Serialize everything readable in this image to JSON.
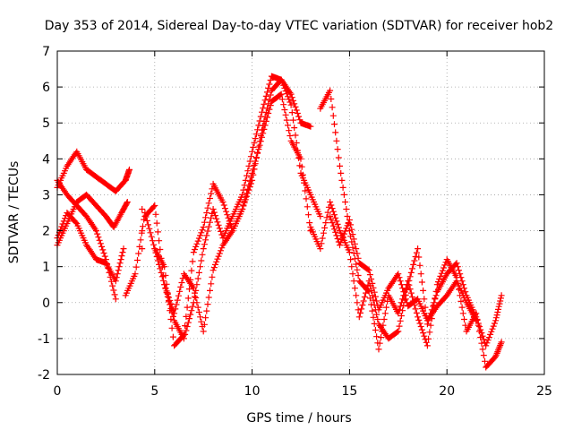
{
  "chart_data": {
    "type": "scatter",
    "title": "Day 353 of 2014, Sidereal Day-to-day VTEC variation (SDTVAR) for receiver hob2",
    "xlabel": "GPS time / hours",
    "ylabel": "SDTVAR / TECUs",
    "xlim": [
      0,
      25
    ],
    "ylim": [
      -2,
      7
    ],
    "xticks": [
      0,
      5,
      10,
      15,
      20,
      25
    ],
    "yticks": [
      -2,
      -1,
      0,
      1,
      2,
      3,
      4,
      5,
      6,
      7
    ],
    "grid": true,
    "legend": "none",
    "marker": "+",
    "series": [
      {
        "name": "trace-1",
        "color": "#ff0000",
        "x": [
          0.0,
          0.5,
          1.0,
          1.5,
          2.0,
          2.5,
          3.0,
          3.5,
          3.7
        ],
        "y": [
          3.2,
          3.8,
          4.2,
          3.7,
          3.5,
          3.3,
          3.1,
          3.4,
          3.7
        ]
      },
      {
        "name": "trace-2",
        "color": "#ff0000",
        "x": [
          0.0,
          0.5,
          1.0,
          1.5,
          2.0,
          2.5,
          2.9,
          3.3,
          3.6
        ],
        "y": [
          1.6,
          2.2,
          2.8,
          3.0,
          2.7,
          2.4,
          2.1,
          2.5,
          2.8
        ]
      },
      {
        "name": "trace-3",
        "color": "#ff0000",
        "x": [
          0.0,
          0.5,
          1.0,
          1.5,
          2.0,
          2.5,
          3.0,
          3.4
        ],
        "y": [
          1.8,
          2.5,
          2.2,
          1.6,
          1.2,
          1.1,
          0.6,
          1.5
        ]
      },
      {
        "name": "trace-4",
        "color": "#ff0000",
        "x": [
          0.0,
          0.5,
          1.0,
          1.5,
          2.0,
          2.5,
          3.0
        ],
        "y": [
          3.4,
          3.0,
          2.7,
          2.4,
          2.0,
          1.2,
          0.1
        ]
      },
      {
        "name": "trace-5",
        "color": "#ff0000",
        "x": [
          3.5,
          4.0,
          4.5,
          5.0,
          5.5,
          6.0,
          6.5,
          7.0,
          7.5,
          8.0,
          8.5,
          9.0,
          9.5,
          10.0,
          10.5,
          11.0,
          11.5,
          12.0,
          12.5,
          13.0
        ],
        "y": [
          0.2,
          0.8,
          2.5,
          1.5,
          0.5,
          -0.5,
          -1.0,
          0.0,
          1.5,
          2.6,
          1.8,
          2.4,
          3.0,
          4.2,
          5.3,
          6.3,
          6.2,
          5.8,
          5.0,
          4.9
        ]
      },
      {
        "name": "trace-6",
        "color": "#ff0000",
        "x": [
          4.5,
          5.0,
          5.5,
          6.0,
          6.5,
          7.0,
          7.5,
          8.0,
          8.5,
          9.0,
          9.5,
          10.0,
          10.5,
          11.0,
          11.5,
          12.0,
          12.5,
          13.0
        ],
        "y": [
          2.4,
          2.7,
          0.5,
          -0.3,
          0.8,
          0.4,
          -0.8,
          0.9,
          1.6,
          2.0,
          2.6,
          3.6,
          4.6,
          5.6,
          5.8,
          4.5,
          4.0,
          2.0
        ]
      },
      {
        "name": "trace-7",
        "color": "#ff0000",
        "x": [
          5.0,
          5.5,
          6.0,
          6.5,
          7.0,
          7.5,
          8.0,
          8.5,
          9.0,
          9.5,
          10.0,
          10.5,
          11.0,
          11.5,
          12.0,
          12.5,
          13.0,
          13.5
        ],
        "y": [
          1.5,
          1.0,
          -1.2,
          -0.9,
          1.4,
          2.1,
          3.3,
          2.8,
          2.0,
          2.6,
          3.4,
          4.8,
          5.9,
          6.2,
          5.5,
          3.6,
          3.0,
          2.4
        ]
      },
      {
        "name": "trace-8",
        "color": "#ff0000",
        "x": [
          13.5,
          14.0,
          14.5,
          15.0,
          15.5,
          16.0,
          16.5,
          17.0,
          17.5,
          18.0,
          18.5,
          19.0,
          19.5,
          20.0,
          20.5,
          21.0,
          21.5,
          22.0,
          22.5,
          22.8
        ],
        "y": [
          5.4,
          5.9,
          3.8,
          2.0,
          0.6,
          0.3,
          -1.3,
          0.2,
          -0.3,
          0.6,
          -0.4,
          -1.2,
          0.5,
          1.2,
          0.7,
          -0.8,
          -0.3,
          -1.8,
          -1.5,
          -1.1
        ]
      },
      {
        "name": "trace-9",
        "color": "#ff0000",
        "x": [
          13.0,
          13.5,
          14.0,
          14.5,
          15.0,
          15.5,
          16.0,
          16.5,
          17.0,
          17.5,
          18.0,
          18.5,
          19.0,
          19.5,
          20.0,
          20.5,
          21.0,
          21.5,
          22.0,
          22.5,
          22.8
        ],
        "y": [
          2.1,
          1.5,
          2.8,
          2.0,
          1.4,
          -0.4,
          0.6,
          -0.6,
          -1.0,
          -0.8,
          0.5,
          1.5,
          -0.6,
          0.3,
          0.8,
          1.1,
          0.2,
          -0.4,
          -1.2,
          -0.5,
          0.2
        ]
      },
      {
        "name": "trace-10",
        "color": "#ff0000",
        "x": [
          14.0,
          14.5,
          15.0,
          15.5,
          16.0,
          16.5,
          17.0,
          17.5,
          18.0,
          18.5,
          19.0,
          19.5,
          20.0,
          20.5,
          21.0,
          21.5
        ],
        "y": [
          2.4,
          1.6,
          2.3,
          1.1,
          0.9,
          -0.2,
          0.4,
          0.8,
          -0.1,
          0.1,
          -0.5,
          -0.1,
          0.2,
          0.6,
          0.0,
          -0.5
        ]
      },
      {
        "name": "isolated-points",
        "color": "#ff0000",
        "x": [
          4.35,
          4.35,
          4.35
        ],
        "y": [
          2.6,
          2.0,
          1.5
        ]
      }
    ]
  }
}
